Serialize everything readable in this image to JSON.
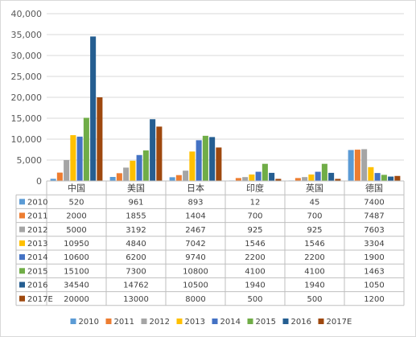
{
  "chart_data": {
    "type": "bar",
    "categories": [
      "中国",
      "美国",
      "日本",
      "印度",
      "英国",
      "德国"
    ],
    "ylim": [
      0,
      40000
    ],
    "yticks": [
      "0",
      "5,000",
      "10,000",
      "15,000",
      "20,000",
      "25,000",
      "30,000",
      "35,000",
      "40,000"
    ],
    "grid": true,
    "legend_position": "bottom",
    "data_table": true,
    "series": [
      {
        "name": "2010",
        "color": "#5b9bd5",
        "values": [
          520,
          961,
          893,
          12,
          45,
          7400
        ]
      },
      {
        "name": "2011",
        "color": "#ed7d31",
        "values": [
          2000,
          1855,
          1404,
          700,
          700,
          7487
        ]
      },
      {
        "name": "2012",
        "color": "#a5a5a5",
        "values": [
          5000,
          3192,
          2467,
          925,
          925,
          7603
        ]
      },
      {
        "name": "2013",
        "color": "#ffc000",
        "values": [
          10950,
          4840,
          7042,
          1546,
          1546,
          3304
        ]
      },
      {
        "name": "2014",
        "color": "#4472c4",
        "values": [
          10600,
          6200,
          9740,
          2200,
          2200,
          1900
        ]
      },
      {
        "name": "2015",
        "color": "#70ad47",
        "values": [
          15100,
          7300,
          10800,
          4100,
          4100,
          1463
        ]
      },
      {
        "name": "2016",
        "color": "#255e91",
        "values": [
          34540,
          14762,
          10500,
          1940,
          1940,
          1050
        ]
      },
      {
        "name": "2017E",
        "color": "#9e480e",
        "values": [
          20000,
          13000,
          8000,
          500,
          500,
          1200
        ]
      }
    ]
  }
}
